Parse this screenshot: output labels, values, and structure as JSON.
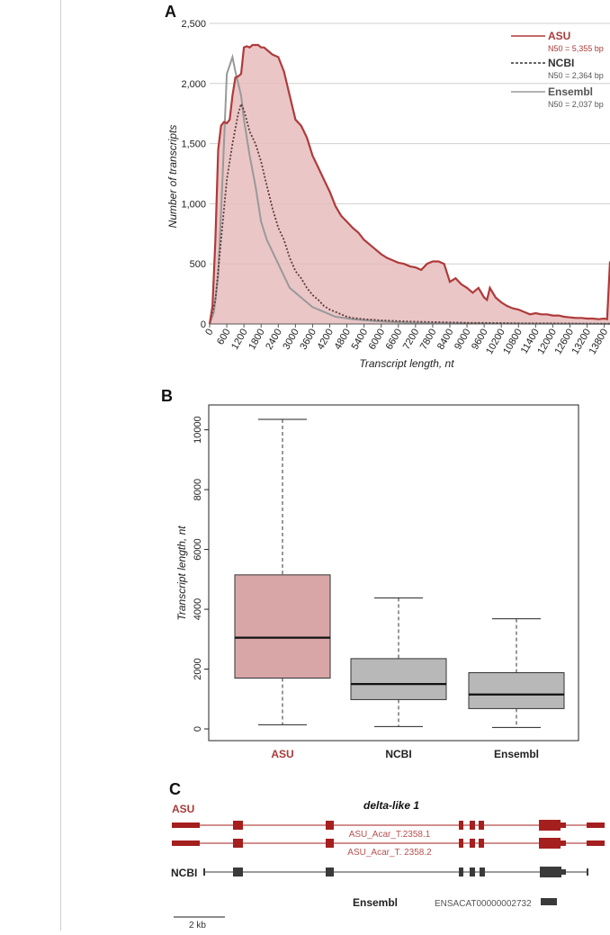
{
  "chart_data": [
    {
      "panel_label": "A",
      "type": "area",
      "xlabel": "Transcript length, nt",
      "ylabel": "Number of transcripts",
      "xlim": [
        0,
        14000
      ],
      "ylim": [
        0,
        2500
      ],
      "yticks": [
        0,
        500,
        1000,
        1500,
        2000,
        2500
      ],
      "ytick_labels": [
        "0",
        "500",
        "1,000",
        "1,500",
        "2,000",
        "2,500"
      ],
      "xtick_labels": [
        "0",
        "600",
        "1200",
        "1800",
        "2400",
        "3000",
        "3600",
        "4200",
        "4800",
        "5400",
        "6000",
        "6600",
        "7200",
        "7800",
        "8400",
        "9000",
        "9600",
        "10200",
        "10800",
        "11400",
        "12000",
        "12600",
        "13200",
        "13800"
      ],
      "legend_position": "top-right",
      "series": [
        {
          "name": "ASU",
          "note": "N50 = 5,355 bp",
          "color": "#b03a3a",
          "style": "solid-filled",
          "x": [
            0,
            100,
            200,
            300,
            400,
            500,
            600,
            700,
            800,
            900,
            1000,
            1100,
            1200,
            1300,
            1400,
            1500,
            1600,
            1700,
            1800,
            1900,
            2000,
            2200,
            2400,
            2600,
            2800,
            3000,
            3200,
            3400,
            3600,
            3800,
            4000,
            4200,
            4400,
            4600,
            4800,
            5000,
            5200,
            5400,
            5600,
            5800,
            6000,
            6200,
            6400,
            6600,
            6800,
            7000,
            7200,
            7400,
            7600,
            7800,
            8000,
            8200,
            8400,
            8600,
            8800,
            9000,
            9200,
            9400,
            9600,
            9700,
            9800,
            10000,
            10200,
            10400,
            10600,
            10800,
            11000,
            11200,
            11400,
            11600,
            11800,
            12000,
            12200,
            12400,
            12600,
            12800,
            13000,
            13200,
            13400,
            13600,
            13800,
            13900,
            14000
          ],
          "values": [
            0,
            150,
            700,
            1450,
            1650,
            1680,
            1670,
            1700,
            1900,
            2050,
            2060,
            2080,
            2300,
            2310,
            2300,
            2320,
            2320,
            2320,
            2300,
            2300,
            2280,
            2240,
            2220,
            2100,
            1900,
            1700,
            1650,
            1550,
            1400,
            1300,
            1200,
            1100,
            980,
            900,
            850,
            800,
            760,
            700,
            660,
            620,
            580,
            550,
            530,
            510,
            500,
            480,
            470,
            450,
            500,
            520,
            520,
            500,
            350,
            380,
            330,
            300,
            260,
            300,
            220,
            200,
            300,
            220,
            180,
            150,
            130,
            120,
            100,
            80,
            90,
            80,
            80,
            70,
            70,
            60,
            55,
            50,
            50,
            45,
            45,
            40,
            45,
            40,
            520
          ]
        },
        {
          "name": "NCBI",
          "note": "N50 = 2,364 bp",
          "color": "#5a3b3b",
          "style": "dotted",
          "x": [
            0,
            200,
            400,
            600,
            800,
            1000,
            1100,
            1200,
            1400,
            1600,
            1800,
            2000,
            2200,
            2400,
            2600,
            2800,
            3000,
            3200,
            3400,
            3600,
            3800,
            4000,
            4200,
            4400,
            4600,
            4800,
            5000,
            5400,
            6000,
            7000,
            8000,
            9000,
            10000,
            11000,
            12000,
            13000,
            14000
          ],
          "values": [
            0,
            200,
            700,
            1200,
            1500,
            1750,
            1830,
            1780,
            1600,
            1500,
            1350,
            1150,
            960,
            800,
            700,
            550,
            440,
            380,
            300,
            240,
            200,
            150,
            120,
            100,
            80,
            60,
            50,
            40,
            30,
            20,
            15,
            10,
            8,
            5,
            5,
            3,
            2
          ]
        },
        {
          "name": "Ensembl",
          "note": "N50 = 2,037 bp",
          "color": "#999999",
          "style": "solid",
          "x": [
            0,
            150,
            300,
            450,
            600,
            800,
            900,
            1000,
            1100,
            1200,
            1400,
            1600,
            1800,
            2000,
            2200,
            2400,
            2600,
            2800,
            3000,
            3200,
            3400,
            3600,
            4000,
            4400,
            5000,
            6000,
            7000,
            8000,
            10000,
            12000,
            14000
          ],
          "values": [
            0,
            100,
            400,
            1200,
            2080,
            2220,
            2100,
            2000,
            1900,
            1700,
            1400,
            1150,
            850,
            700,
            600,
            500,
            400,
            300,
            260,
            220,
            180,
            140,
            100,
            60,
            40,
            20,
            10,
            6,
            4,
            2,
            1
          ]
        }
      ]
    },
    {
      "panel_label": "B",
      "type": "boxplot",
      "xlabel": "",
      "ylabel": "Transcript length, nt",
      "ylim": [
        0,
        10500
      ],
      "yticks": [
        0,
        2000,
        4000,
        6000,
        8000,
        10000
      ],
      "categories": [
        "ASU",
        "NCBI",
        "Ensembl"
      ],
      "colors": [
        "#d9a6a8",
        "#b8b8b8",
        "#b8b8b8"
      ],
      "label_colors": [
        "#a83a3a",
        "#222222",
        "#222222"
      ],
      "boxes": [
        {
          "name": "ASU",
          "whisker_low": 140,
          "q1": 1700,
          "median": 3050,
          "q3": 5150,
          "whisker_high": 10350
        },
        {
          "name": "NCBI",
          "whisker_low": 80,
          "q1": 980,
          "median": 1500,
          "q3": 2350,
          "whisker_high": 4380
        },
        {
          "name": "Ensembl",
          "whisker_low": 50,
          "q1": 680,
          "median": 1150,
          "q3": 1880,
          "whisker_high": 3680
        }
      ]
    }
  ],
  "panel_c": {
    "panel_label": "C",
    "gene_title": "delta-like 1",
    "asu_label": "ASU",
    "ncbi_label": "NCBI",
    "ensembl_label": "Ensembl",
    "transcript_1": "ASU_Acar_T.2358.1",
    "transcript_2": "ASU_Acar_T. 2358.2",
    "ensembl_id": "ENSACAT00000002732",
    "scale_label": "2 kb",
    "asu_color": "#a51f1f",
    "ncbi_color": "#3a3a3a"
  }
}
